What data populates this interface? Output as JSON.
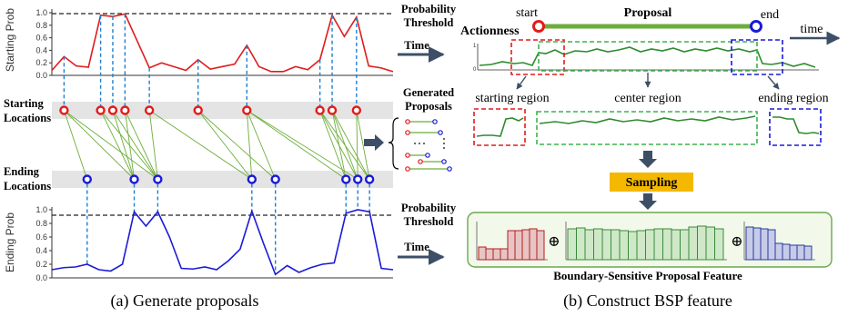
{
  "panel_a": {
    "start_chart": {
      "ylabel": "Starting Prob",
      "yticks": [
        "1.0",
        "0.8",
        "0.6",
        "0.4",
        "0.2",
        "0.0"
      ],
      "threshold_label_1": "Probability",
      "threshold_label_2": "Threshold",
      "time_label": "Time"
    },
    "starting_label_1": "Starting",
    "starting_label_2": "Locations",
    "ending_label_1": "Ending",
    "ending_label_2": "Locations",
    "generated_label_1": "Generated",
    "generated_label_2": "Proposals",
    "end_chart": {
      "ylabel": "Ending Prob",
      "yticks": [
        "1.0",
        "0.8",
        "0.6",
        "0.4",
        "0.2",
        "0.0"
      ],
      "threshold_label_1": "Probability",
      "threshold_label_2": "Threshold",
      "time_label": "Time"
    },
    "caption": "(a)  Generate proposals"
  },
  "panel_b": {
    "start_label": "start",
    "end_label": "end",
    "proposal_label": "Proposal",
    "actionness_label": "Actionness",
    "time_label": "time",
    "axis_one": "1",
    "axis_zero": "0",
    "starting_region": "starting region",
    "center_region": "center region",
    "ending_region": "ending region",
    "sampling_label": "Sampling",
    "plus_symbol": "⊕",
    "feature_label": "Boundary-Sensitive Proposal Feature",
    "caption": "(b)  Construct BSP feature"
  },
  "colors": {
    "start_red": "#e11b1b",
    "end_blue": "#1a1ad6",
    "green": "#2e8b2e",
    "gray_band": "#e4e4e4",
    "sampling_orange": "#f5b800",
    "arrow_gray": "#3d4f66"
  },
  "chart_data": [
    {
      "type": "line",
      "ylabel": "Starting Prob",
      "ylim": [
        0,
        1.0
      ],
      "threshold": 0.9,
      "series": [
        {
          "values": [
            0.08,
            0.3,
            0.15,
            0.13,
            0.96,
            0.94,
            0.98,
            0.55,
            0.12,
            0.2,
            0.14,
            0.08,
            0.25,
            0.1,
            0.14,
            0.18,
            0.48,
            0.14,
            0.06,
            0.06,
            0.14,
            0.09,
            0.25,
            0.96,
            0.62,
            0.93,
            0.15,
            0.12,
            0.06
          ]
        }
      ]
    },
    {
      "type": "line",
      "ylabel": "Ending Prob",
      "ylim": [
        0,
        1.0
      ],
      "threshold": 0.9,
      "series": [
        {
          "values": [
            0.12,
            0.15,
            0.16,
            0.2,
            0.12,
            0.1,
            0.2,
            0.97,
            0.76,
            0.97,
            0.6,
            0.14,
            0.13,
            0.16,
            0.12,
            0.25,
            0.42,
            0.98,
            0.5,
            0.05,
            0.18,
            0.08,
            0.15,
            0.2,
            0.22,
            0.95,
            1.0,
            0.97,
            0.14,
            0.12
          ]
        }
      ]
    }
  ]
}
